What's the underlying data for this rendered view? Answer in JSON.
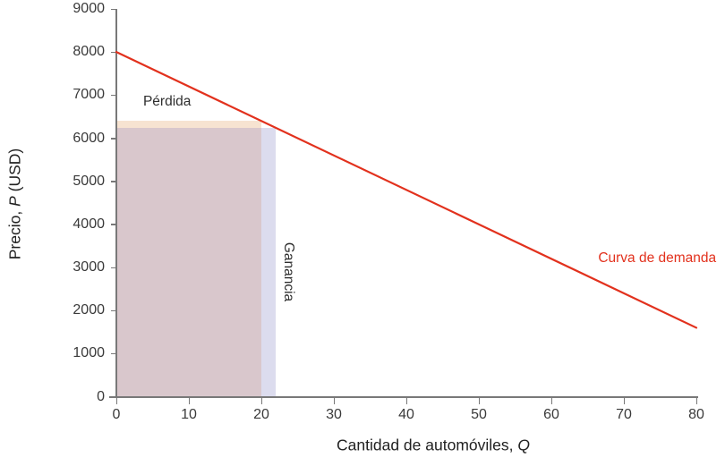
{
  "chart_data": {
    "type": "line",
    "title": "",
    "xlabel": {
      "prefix": "Cantidad de automóviles, ",
      "var": "Q",
      "suffix": ""
    },
    "ylabel": {
      "prefix": "Precio, ",
      "var": "P",
      "suffix": " (USD)"
    },
    "xlim": [
      0,
      80
    ],
    "ylim": [
      0,
      9000
    ],
    "x_ticks": [
      0,
      10,
      20,
      30,
      40,
      50,
      60,
      70,
      80
    ],
    "y_ticks": [
      0,
      1000,
      2000,
      3000,
      4000,
      5000,
      6000,
      7000,
      8000,
      9000
    ],
    "grid": false,
    "legend": "none",
    "series": [
      {
        "name": "Curva de demanda",
        "color": "#e2311d",
        "points": [
          {
            "q": 0,
            "p": 8000
          },
          {
            "q": 80,
            "p": 1600
          }
        ]
      }
    ],
    "regions": [
      {
        "name": "revenue-rectangle",
        "q": [
          0,
          20
        ],
        "p": [
          0,
          6240
        ],
        "color": "#d9c7cc"
      },
      {
        "name": "perdida-region",
        "q": [
          0,
          20
        ],
        "p": [
          6240,
          6400
        ],
        "color": "#f7e3d1"
      },
      {
        "name": "ganancia-region",
        "q": [
          20,
          22
        ],
        "p": [
          0,
          6240
        ],
        "color": "#dcdcee"
      }
    ],
    "annotations": [
      {
        "name": "perdida-label",
        "text": "Pérdida",
        "q": 7.0,
        "p": 6840,
        "color": "#2e2e2e",
        "rotate": 0
      },
      {
        "name": "ganancia-label",
        "text": "Ganancia",
        "q": 23.7,
        "p": 2900,
        "color": "#2e2e2e",
        "rotate": 90
      },
      {
        "name": "demand-curve-label",
        "text": "Curva de demanda",
        "q": 74.6,
        "p": 3200,
        "color": "#e2311d",
        "rotate": 0
      }
    ]
  },
  "colors": {
    "axis": "#787878",
    "tick_text": "#3a3a3a",
    "axis_title_text": "#222222",
    "background": "#ffffff"
  }
}
